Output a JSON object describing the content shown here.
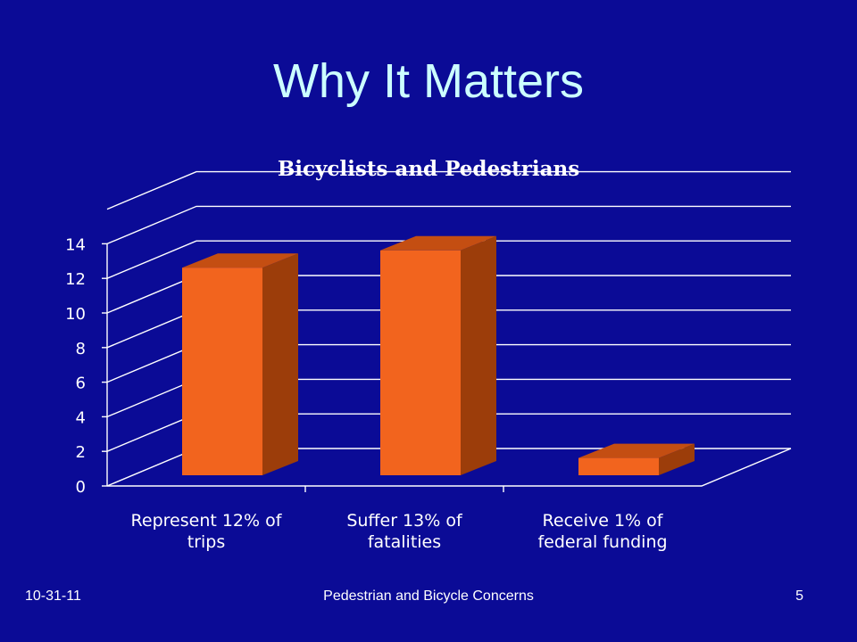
{
  "slide": {
    "title": "Why It Matters",
    "footer_date": "10-31-11",
    "footer_center": "Pedestrian and Bicycle Concerns",
    "page_number": "5"
  },
  "chart_data": {
    "type": "bar",
    "title": "Bicyclists and Pedestrians",
    "categories": [
      [
        "Represent 12% of",
        "trips"
      ],
      [
        "Suffer 13% of",
        "fatalities"
      ],
      [
        "Receive 1% of",
        "federal funding"
      ]
    ],
    "values": [
      12,
      13,
      1
    ],
    "yticks": [
      "0",
      "2",
      "4",
      "6",
      "8",
      "10",
      "12",
      "14"
    ],
    "ylim": [
      0,
      16
    ],
    "grid": true,
    "bar_color": "#f2641e",
    "bar_side_color": "#9c3d0a",
    "bar_top_color": "#c44e12",
    "background": "#0b0b96"
  }
}
